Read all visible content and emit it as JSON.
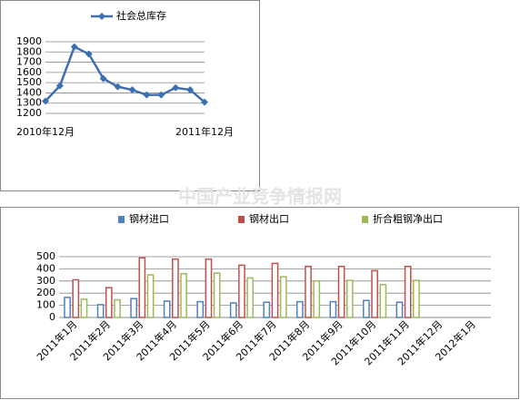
{
  "watermark": "中国产业竞争情报网",
  "chart_data": [
    {
      "type": "line",
      "categories": [
        "2010年12月",
        null,
        null,
        null,
        null,
        null,
        null,
        null,
        null,
        null,
        null,
        "2011年12月"
      ],
      "series": [
        {
          "name": "社会总库存",
          "color": "#3d6fb4",
          "values": [
            1320,
            1470,
            1850,
            1780,
            1540,
            1460,
            1430,
            1380,
            1380,
            1450,
            1430,
            1310
          ]
        }
      ],
      "ylim": [
        1200,
        1900
      ],
      "yticks": [
        1200,
        1300,
        1400,
        1500,
        1600,
        1700,
        1800,
        1900
      ],
      "grid": true
    },
    {
      "type": "bar",
      "categories": [
        "2011年1月",
        "2011年2月",
        "2011年3月",
        "2011年4月",
        "2011年5月",
        "2011年6月",
        "2011年7月",
        "2011年8月",
        "2011年9月",
        "2011年10月",
        "2011年11月",
        "2011年12月",
        "2012年1月"
      ],
      "series": [
        {
          "name": "钢材进口",
          "color": "#4f81bd",
          "values": [
            165,
            105,
            155,
            135,
            130,
            120,
            125,
            130,
            130,
            140,
            125,
            null,
            null
          ]
        },
        {
          "name": "钢材出口",
          "color": "#c0504d",
          "values": [
            310,
            245,
            490,
            480,
            480,
            430,
            445,
            420,
            420,
            385,
            420,
            null,
            null
          ]
        },
        {
          "name": "折合粗钢净出口",
          "color": "#9bbb59",
          "values": [
            150,
            145,
            350,
            360,
            365,
            325,
            335,
            300,
            305,
            270,
            305,
            null,
            null
          ]
        }
      ],
      "ylim": [
        0,
        500
      ],
      "yticks": [
        0,
        100,
        200,
        300,
        400,
        500
      ],
      "grid": true
    }
  ]
}
